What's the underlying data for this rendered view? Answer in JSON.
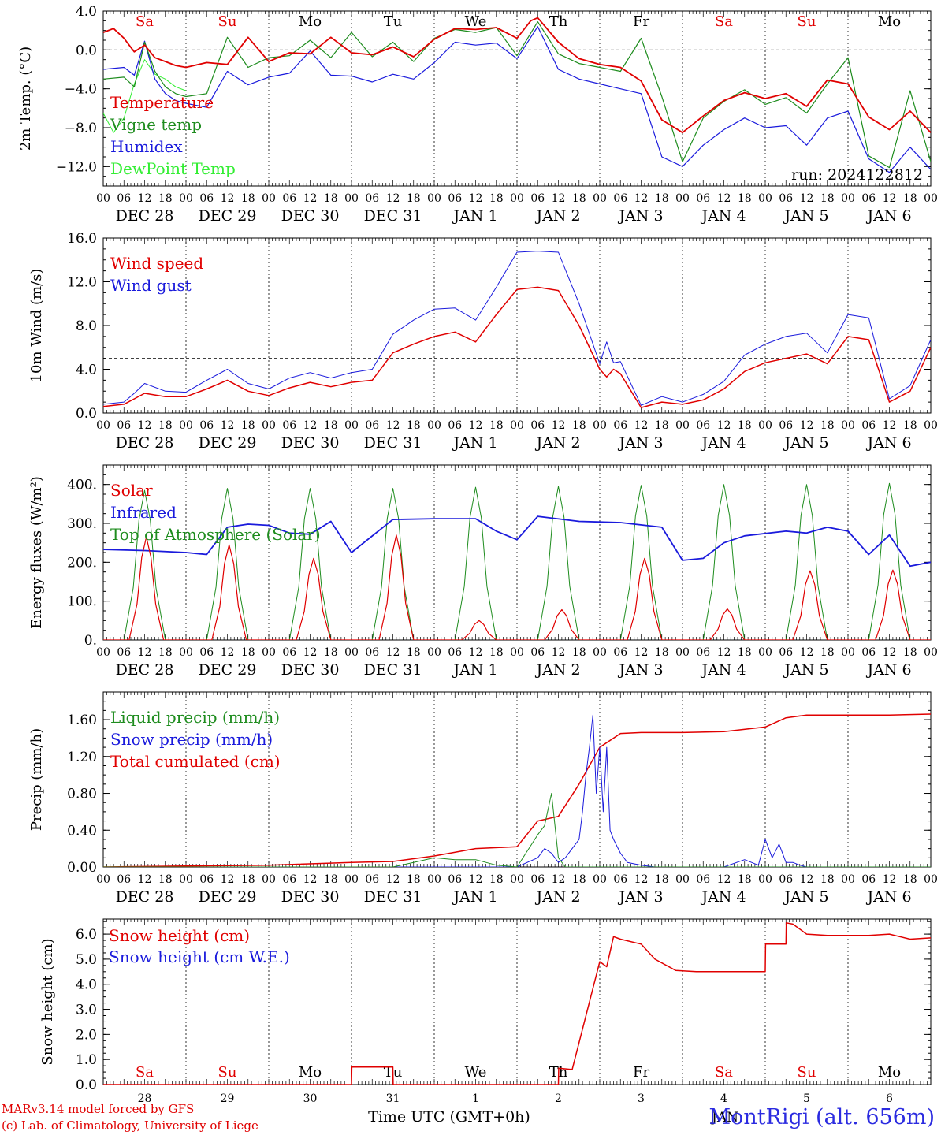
{
  "footer": {
    "credit_line1": "MARv3.14 model forced by GFS",
    "credit_line2": "(c) Lab. of Climatology, University of Liege",
    "station": "MontRigi (alt. 656m)",
    "time_label": "Time UTC (GMT+0h)",
    "month_label": "JAN"
  },
  "days": {
    "dates": [
      "DEC 28",
      "DEC 29",
      "DEC 30",
      "DEC 31",
      "JAN  1",
      "JAN  2",
      "JAN  3",
      "JAN  4",
      "JAN  5",
      "JAN  6"
    ],
    "weekdays": [
      "Sa",
      "Su",
      "Mo",
      "Tu",
      "We",
      "Th",
      "Fr",
      "Sa",
      "Su",
      "Mo"
    ],
    "weekday_colors": [
      "#e00000",
      "#e00000",
      "#000000",
      "#000000",
      "#000000",
      "#000000",
      "#000000",
      "#e00000",
      "#e00000",
      "#000000"
    ],
    "day_numbers": [
      "28",
      "29",
      "30",
      "31",
      "1",
      "2",
      "3",
      "4",
      "5",
      "6"
    ],
    "hour_labels": [
      "00",
      "06",
      "12",
      "18"
    ],
    "final_hour_label": "00"
  },
  "chart_data": [
    {
      "type": "line",
      "ylabel": "2m Temp. (°C)",
      "ylim": [
        -14,
        4
      ],
      "yticks": [
        4,
        0,
        -4,
        -8,
        -12
      ],
      "ytick_labels": [
        "4.0",
        "0.0",
        "−4.0",
        "−8.0",
        "−12.0"
      ],
      "reference_line": 0,
      "run_label": "run: 2024122812",
      "series": [
        {
          "name": "Temperature",
          "color": "#e00000",
          "width": 1.8,
          "x": [
            0,
            3,
            6,
            9,
            12,
            15,
            18,
            21,
            24,
            30,
            36,
            42,
            48,
            54,
            60,
            66,
            72,
            78,
            84,
            90,
            96,
            102,
            108,
            114,
            120,
            124,
            126,
            132,
            138,
            144,
            150,
            156,
            162,
            168,
            174,
            180,
            186,
            192,
            198,
            204,
            210,
            216,
            222,
            228,
            234,
            240
          ],
          "y": [
            1.8,
            2.2,
            1.2,
            -0.2,
            0.5,
            -0.8,
            -1.2,
            -1.6,
            -1.8,
            -1.3,
            -1.5,
            1.3,
            -1.2,
            -0.3,
            -0.4,
            1.3,
            -0.3,
            -0.5,
            0.3,
            -0.7,
            1.1,
            2.2,
            2.1,
            2.3,
            1.2,
            3.0,
            3.3,
            0.8,
            -0.9,
            -1.5,
            -1.8,
            -3.2,
            -7.2,
            -8.5,
            -6.8,
            -5.2,
            -4.4,
            -5.0,
            -4.5,
            -5.8,
            -3.1,
            -3.5,
            -6.9,
            -8.2,
            -6.3,
            -8.5
          ]
        },
        {
          "name": "Vigne temp",
          "color": "#1e8c1e",
          "width": 1.2,
          "x": [
            0,
            6,
            9,
            12,
            15,
            18,
            21,
            24,
            30,
            36,
            42,
            48,
            54,
            60,
            66,
            72,
            78,
            84,
            90,
            96,
            102,
            108,
            114,
            120,
            126,
            132,
            138,
            144,
            150,
            156,
            162,
            168,
            174,
            180,
            186,
            192,
            198,
            204,
            210,
            216,
            222,
            228,
            234,
            240
          ],
          "y": [
            -3.0,
            -2.8,
            -3.8,
            0.8,
            -2.2,
            -3.8,
            -4.5,
            -4.8,
            -4.5,
            1.3,
            -1.8,
            -0.8,
            -0.6,
            1.0,
            -0.8,
            1.8,
            -0.7,
            0.8,
            -1.2,
            1.2,
            2.1,
            1.8,
            2.3,
            -0.6,
            2.9,
            -0.4,
            -1.4,
            -1.8,
            -2.2,
            1.2,
            -4.8,
            -11.5,
            -7.0,
            -5.3,
            -4.1,
            -5.6,
            -4.9,
            -6.5,
            -3.5,
            -0.8,
            -10.9,
            -12.1,
            -4.2,
            -11.5
          ]
        },
        {
          "name": "Humidex",
          "color": "#1a1adc",
          "width": 1.2,
          "x": [
            0,
            6,
            9,
            12,
            15,
            18,
            21,
            24,
            30,
            36,
            42,
            48,
            54,
            60,
            66,
            72,
            78,
            84,
            90,
            96,
            102,
            108,
            114,
            120,
            126,
            132,
            138,
            144,
            150,
            156,
            162,
            168,
            174,
            180,
            186,
            192,
            198,
            204,
            210,
            216,
            222,
            228,
            234,
            240
          ],
          "y": [
            -2.0,
            -1.8,
            -2.6,
            0.9,
            -3.0,
            -4.5,
            -5.2,
            -5.5,
            -5.9,
            -2.2,
            -3.6,
            -2.8,
            -2.4,
            -0.1,
            -2.6,
            -2.7,
            -3.3,
            -2.5,
            -3.0,
            -1.3,
            0.8,
            0.5,
            0.7,
            -0.9,
            2.4,
            -2.0,
            -3.0,
            -3.5,
            -4.0,
            -4.5,
            -11.0,
            -12.0,
            -9.8,
            -8.2,
            -7.0,
            -8.0,
            -7.8,
            -9.8,
            -7.0,
            -6.3,
            -11.2,
            -12.6,
            -10.0,
            -12.3
          ]
        },
        {
          "name": "DewPoint Temp",
          "color": "#33ee33",
          "width": 1.0,
          "x": [
            0,
            3,
            6,
            9,
            12,
            15,
            18,
            21,
            24
          ],
          "y": [
            -6.5,
            -8.5,
            -7.0,
            -3.5,
            -1.0,
            -2.5,
            -3.0,
            -3.8,
            -4.2
          ]
        }
      ]
    },
    {
      "type": "line",
      "ylabel": "10m Wind (m/s)",
      "ylim": [
        0,
        16
      ],
      "yticks": [
        16,
        12,
        8,
        4,
        0
      ],
      "ytick_labels": [
        "16.0",
        "12.0",
        "8.0",
        "4.0",
        "0.0"
      ],
      "reference_line": 5,
      "series": [
        {
          "name": "Wind speed",
          "color": "#e00000",
          "width": 1.5,
          "x": [
            0,
            6,
            9,
            12,
            18,
            24,
            30,
            36,
            42,
            48,
            54,
            60,
            66,
            72,
            78,
            84,
            90,
            96,
            102,
            108,
            114,
            120,
            126,
            132,
            138,
            144,
            146,
            148,
            150,
            156,
            162,
            168,
            174,
            180,
            186,
            192,
            198,
            204,
            210,
            216,
            222,
            228,
            234,
            240
          ],
          "y": [
            0.6,
            0.8,
            1.3,
            1.8,
            1.5,
            1.5,
            2.2,
            3.0,
            2.0,
            1.6,
            2.3,
            2.8,
            2.4,
            2.8,
            3.0,
            5.5,
            6.3,
            7.0,
            7.4,
            6.5,
            9.0,
            11.3,
            11.5,
            11.2,
            8.0,
            4.0,
            3.3,
            4.0,
            3.6,
            0.5,
            1.0,
            0.8,
            1.2,
            2.2,
            3.8,
            4.6,
            5.0,
            5.4,
            4.5,
            7.0,
            6.7,
            1.0,
            2.0,
            6.0
          ]
        },
        {
          "name": "Wind gust",
          "color": "#1a1adc",
          "width": 1.0,
          "x": [
            0,
            6,
            9,
            12,
            18,
            24,
            30,
            36,
            42,
            48,
            54,
            60,
            66,
            72,
            78,
            84,
            90,
            96,
            102,
            108,
            114,
            120,
            126,
            132,
            138,
            144,
            146,
            148,
            150,
            156,
            162,
            168,
            174,
            180,
            186,
            192,
            198,
            204,
            210,
            216,
            222,
            228,
            234,
            240
          ],
          "y": [
            0.8,
            1.0,
            1.8,
            2.7,
            2.0,
            1.9,
            3.0,
            4.0,
            2.7,
            2.2,
            3.2,
            3.7,
            3.2,
            3.7,
            4.0,
            7.2,
            8.5,
            9.5,
            9.6,
            8.5,
            11.5,
            14.7,
            14.8,
            14.7,
            10.0,
            4.5,
            6.5,
            4.6,
            4.7,
            0.7,
            1.5,
            1.0,
            1.7,
            2.9,
            5.3,
            6.3,
            7.0,
            7.3,
            5.5,
            9.0,
            8.7,
            1.3,
            2.5,
            6.7
          ]
        }
      ]
    },
    {
      "type": "line",
      "ylabel": "Energy fluxes (W/m²)",
      "ylim": [
        0,
        450
      ],
      "yticks": [
        400,
        300,
        200,
        100,
        0
      ],
      "ytick_labels": [
        "400.",
        "300.",
        "200.",
        "100.",
        "0."
      ],
      "series": [
        {
          "name": "Solar",
          "color": "#e00000",
          "width": 1.2,
          "peaks_x": [
            12.5,
            12.5,
            13,
            13,
            13,
            13,
            13,
            13,
            13,
            13
          ],
          "peaks_y": [
            265,
            245,
            210,
            270,
            50,
            78,
            210,
            80,
            178,
            180
          ],
          "half_width": 4.5
        },
        {
          "name": "Infrared",
          "color": "#1a1adc",
          "width": 1.8,
          "x": [
            0,
            12,
            24,
            30,
            36,
            42,
            48,
            54,
            60,
            66,
            72,
            84,
            96,
            108,
            114,
            120,
            126,
            138,
            150,
            162,
            168,
            174,
            180,
            186,
            198,
            204,
            210,
            216,
            222,
            228,
            234,
            240
          ],
          "y": [
            233,
            230,
            225,
            220,
            290,
            298,
            295,
            275,
            272,
            305,
            225,
            310,
            312,
            312,
            280,
            258,
            318,
            305,
            302,
            290,
            205,
            210,
            250,
            268,
            280,
            275,
            290,
            280,
            220,
            270,
            190,
            200
          ]
        },
        {
          "name": "Top of Atmosphere (Solar)",
          "color": "#1e8c1e",
          "width": 1.0,
          "peaks_x": [
            12,
            12,
            12,
            12,
            12,
            12,
            12,
            12,
            12,
            12
          ],
          "peaks_y": [
            385,
            390,
            390,
            390,
            393,
            395,
            398,
            400,
            400,
            403
          ],
          "half_width": 5.5
        }
      ]
    },
    {
      "type": "line",
      "ylabel": "Precip (mm/h)",
      "ylim": [
        0,
        1.9
      ],
      "yticks": [
        1.6,
        1.2,
        0.8,
        0.4,
        0
      ],
      "ytick_labels": [
        "1.60",
        "1.20",
        "0.80",
        "0.40",
        "0.00"
      ],
      "series": [
        {
          "name": "Liquid precip (mm/h)",
          "color": "#1e8c1e",
          "width": 1.0,
          "x": [
            0,
            84,
            90,
            96,
            102,
            108,
            114,
            120,
            126,
            128,
            130,
            132,
            134,
            136,
            140,
            240
          ],
          "y": [
            0,
            0,
            0.05,
            0.1,
            0.08,
            0.08,
            0.02,
            0,
            0.35,
            0.45,
            0.8,
            0.1,
            0,
            0,
            0,
            0
          ]
        },
        {
          "name": "Snow precip (mm/h)",
          "color": "#1a1adc",
          "width": 1.0,
          "x": [
            0,
            96,
            120,
            126,
            128,
            130,
            132,
            134,
            136,
            138,
            139,
            140,
            141,
            142,
            143,
            144,
            145,
            146,
            147,
            148,
            150,
            152,
            156,
            160,
            180,
            186,
            190,
            192,
            194,
            196,
            198,
            200,
            202,
            204,
            210,
            240
          ],
          "y": [
            0,
            0,
            0,
            0.1,
            0.2,
            0.15,
            0.05,
            0.1,
            0.2,
            0.3,
            0.6,
            1.0,
            1.3,
            1.65,
            0.8,
            1.3,
            0.6,
            1.3,
            0.4,
            0.3,
            0.15,
            0.05,
            0.02,
            0,
            0,
            0.08,
            0.02,
            0.3,
            0.1,
            0.25,
            0.05,
            0.05,
            0.02,
            0,
            0,
            0
          ]
        },
        {
          "name": "Total cumulated (cm)",
          "color": "#e00000",
          "width": 1.5,
          "x": [
            0,
            24,
            48,
            72,
            84,
            96,
            108,
            120,
            126,
            132,
            138,
            144,
            150,
            156,
            168,
            180,
            192,
            198,
            204,
            216,
            228,
            240
          ],
          "y": [
            0,
            0.01,
            0.02,
            0.05,
            0.06,
            0.12,
            0.2,
            0.22,
            0.5,
            0.55,
            0.9,
            1.3,
            1.45,
            1.46,
            1.46,
            1.47,
            1.52,
            1.62,
            1.65,
            1.65,
            1.65,
            1.66
          ]
        }
      ]
    },
    {
      "type": "line",
      "ylabel": "Snow height (cm)",
      "ylim": [
        0,
        6.6
      ],
      "yticks": [
        6,
        5,
        4,
        3,
        2,
        1,
        0
      ],
      "ytick_labels": [
        "6.0",
        "5.0",
        "4.0",
        "3.0",
        "2.0",
        "1.0",
        "0.0"
      ],
      "series": [
        {
          "name": "Snow height (cm)",
          "color": "#e00000",
          "width": 1.5,
          "x": [
            0,
            72,
            72.1,
            84,
            84.1,
            132,
            132.1,
            136,
            144,
            146,
            148,
            150,
            156,
            160,
            166,
            172,
            180,
            192,
            192.1,
            198,
            198.1,
            200,
            204,
            210,
            222,
            228,
            234,
            240
          ],
          "y": [
            0,
            0,
            0.7,
            0.7,
            0,
            0,
            0.65,
            0.6,
            4.9,
            4.7,
            5.9,
            5.8,
            5.6,
            5.0,
            4.55,
            4.5,
            4.5,
            4.5,
            5.6,
            5.6,
            6.45,
            6.4,
            6.0,
            5.95,
            5.95,
            6.0,
            5.8,
            5.85
          ]
        },
        {
          "name": "Snow height (cm W.E.)",
          "color": "#1a1adc",
          "width": 1.0,
          "x": [],
          "y": []
        }
      ]
    }
  ]
}
